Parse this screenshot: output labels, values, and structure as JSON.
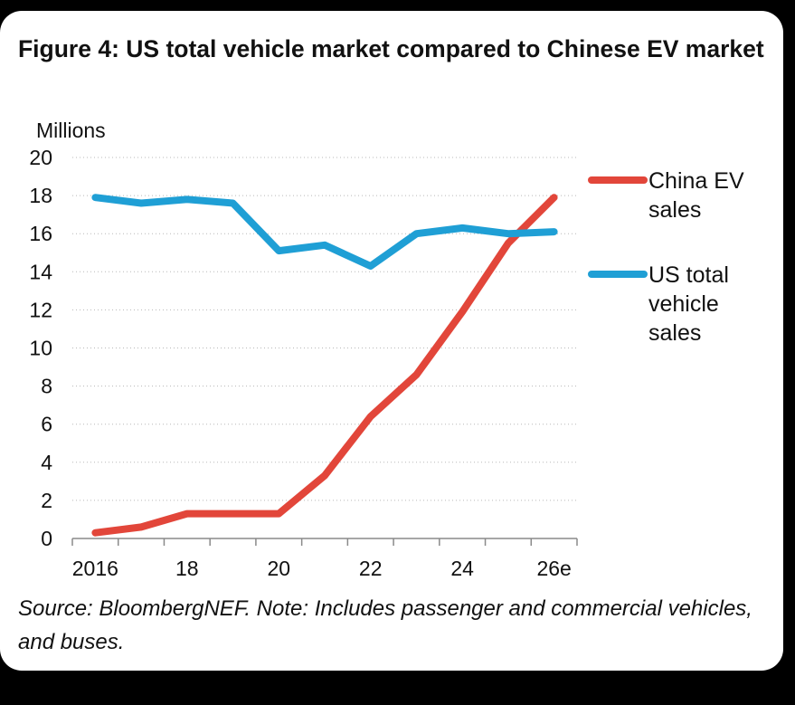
{
  "title": "Figure 4:  US total vehicle market compared to Chinese EV market",
  "source": "Source: BloombergNEF. Note: Includes passenger and commercial vehicles, and buses.",
  "chart_data": {
    "type": "line",
    "ylabel": "Millions",
    "ylim": [
      0,
      20
    ],
    "yticks": [
      "0",
      "2",
      "4",
      "6",
      "8",
      "10",
      "12",
      "14",
      "16",
      "18",
      "20"
    ],
    "categories": [
      "2016",
      "17",
      "18",
      "19",
      "20",
      "21",
      "22",
      "23",
      "24",
      "25",
      "26e"
    ],
    "xtick_labels": [
      "2016",
      "",
      "18",
      "",
      "20",
      "",
      "22",
      "",
      "24",
      "",
      "26e"
    ],
    "grid": true,
    "legend_position": "right",
    "series": [
      {
        "name": "China EV sales",
        "legend_lines": [
          "China EV",
          "sales"
        ],
        "color": "#e2463a",
        "values": [
          0.3,
          0.6,
          1.3,
          1.3,
          1.3,
          3.3,
          6.4,
          8.6,
          11.9,
          15.5,
          17.9
        ]
      },
      {
        "name": "US total vehicle sales",
        "legend_lines": [
          "US total",
          "vehicle",
          "sales"
        ],
        "color": "#1f9fd5",
        "values": [
          17.9,
          17.6,
          17.8,
          17.6,
          15.1,
          15.4,
          14.3,
          16.0,
          16.3,
          16.0,
          16.1
        ]
      }
    ]
  }
}
